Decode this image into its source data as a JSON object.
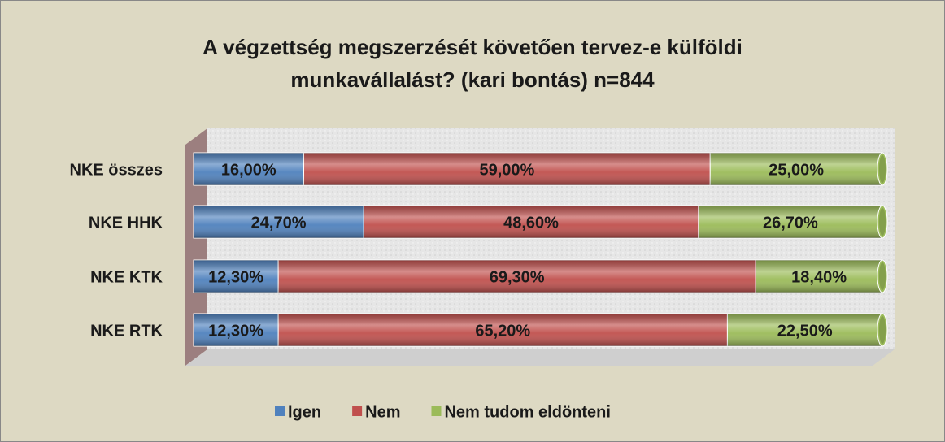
{
  "chart_data": {
    "type": "stacked-barh",
    "title": [
      "A végzettség megszerzését követően tervez-e külföldi",
      "munkavállalást? (kari bontás) n=844"
    ],
    "categories": [
      "NKE összes",
      "NKE HHK",
      "NKE KTK",
      "NKE RTK"
    ],
    "series": [
      {
        "name": "Igen",
        "color": "#4f81bd",
        "values": [
          16,
          24.7,
          12.3,
          12.3
        ],
        "value_labels": [
          "16,00%",
          "24,70%",
          "12,30%",
          "12,30%"
        ]
      },
      {
        "name": "Nem",
        "color": "#c0504d",
        "values": [
          59,
          48.6,
          69.3,
          65.2
        ],
        "value_labels": [
          "59,00%",
          "48,60%",
          "69,30%",
          "65,20%"
        ]
      },
      {
        "name": "Nem tudom eldönteni",
        "color": "#9bbb59",
        "values": [
          25,
          26.7,
          18.4,
          22.5
        ],
        "value_labels": [
          "25,00%",
          "26,70%",
          "18,40%",
          "22,50%"
        ]
      }
    ],
    "xlim": [
      0,
      100
    ],
    "legend": "bottom"
  }
}
